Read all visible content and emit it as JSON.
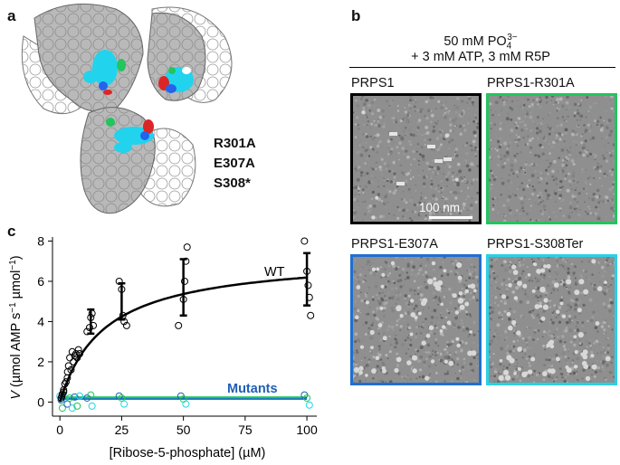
{
  "panels": {
    "a": {
      "letter": "a",
      "mutations": [
        {
          "label": "R301A",
          "color": "#1aa84a"
        },
        {
          "label": "E307A",
          "color": "#1f5fb5"
        },
        {
          "label": "S308*",
          "color": "#18a8b8"
        }
      ],
      "colors": {
        "surface_gray": "#b9b9b9",
        "surface_white": "#ffffff",
        "cyan": "#22d3ee",
        "green": "#22c55e",
        "blue": "#2563eb",
        "red": "#dc2626"
      }
    },
    "b": {
      "letter": "b",
      "condition_line1": "50 mM PO",
      "condition_sub": "4",
      "condition_sup": "3−",
      "condition_line2": "+ 3 mM ATP, 3 mM R5P",
      "images": [
        {
          "label": "PRPS1",
          "border": "#000000"
        },
        {
          "label": "PRPS1-R301A",
          "border": "#22c55e"
        },
        {
          "label": "PRPS1-E307A",
          "border": "#1f6fd1"
        },
        {
          "label": "PRPS1-S308Ter",
          "border": "#2bd0e6"
        }
      ],
      "scale_bar": "100 nm"
    },
    "c": {
      "letter": "c",
      "chart_data": {
        "type": "scatter",
        "xlabel": "[Ribose-5-phosphate] (µM)",
        "ylabel_main": "V (µmol AMP s",
        "ylabel_sup1": "−1",
        "ylabel_mid": " µmol",
        "ylabel_sup2": "−1",
        "ylabel_end": ")",
        "xlim": [
          -3,
          104
        ],
        "ylim": [
          -0.7,
          8.2
        ],
        "xticks": [
          0,
          25,
          50,
          75,
          100
        ],
        "yticks": [
          0,
          2,
          4,
          6,
          8
        ],
        "series": [
          {
            "name": "WT",
            "color": "#000000",
            "fit": {
              "vmax": 7.3,
              "km": 18
            },
            "means": [
              {
                "x": 12.5,
                "y": 4.0,
                "err": 0.6
              },
              {
                "x": 25,
                "y": 5.0,
                "err": 0.9
              },
              {
                "x": 50,
                "y": 5.7,
                "err": 1.4
              },
              {
                "x": 100,
                "y": 6.1,
                "err": 1.3
              }
            ],
            "points": [
              [
                0.5,
                0.2
              ],
              [
                0.8,
                0.3
              ],
              [
                1,
                0.4
              ],
              [
                1.5,
                0.5
              ],
              [
                1.5,
                0.6
              ],
              [
                2,
                0.9
              ],
              [
                2.5,
                1.0
              ],
              [
                3,
                1.2
              ],
              [
                3.1,
                1.5
              ],
              [
                3.5,
                1.8
              ],
              [
                4,
                2.2
              ],
              [
                4.5,
                1.6
              ],
              [
                5,
                2.5
              ],
              [
                5.5,
                2.0
              ],
              [
                6,
                2.3
              ],
              [
                6.5,
                2.4
              ],
              [
                7,
                2.2
              ],
              [
                7.5,
                2.6
              ],
              [
                8,
                2.4
              ],
              [
                11,
                3.5
              ],
              [
                12,
                3.7
              ],
              [
                12.5,
                4.2
              ],
              [
                13,
                4.4
              ],
              [
                13.5,
                3.8
              ],
              [
                24,
                6.0
              ],
              [
                25,
                5.6
              ],
              [
                25.5,
                4.3
              ],
              [
                26,
                4.0
              ],
              [
                27,
                3.8
              ],
              [
                48,
                3.8
              ],
              [
                50,
                5.1
              ],
              [
                50.5,
                6.0
              ],
              [
                51,
                7.0
              ],
              [
                51.5,
                7.7
              ],
              [
                99,
                8.0
              ],
              [
                100,
                6.5
              ],
              [
                100.5,
                5.8
              ],
              [
                101,
                5.2
              ],
              [
                101.5,
                4.3
              ]
            ]
          },
          {
            "name": "Mutants",
            "color": "#1f5fb5",
            "points": [
              [
                0,
                0.3
              ],
              [
                0.5,
                0.1
              ],
              [
                1,
                -0.3
              ],
              [
                2,
                0.2
              ],
              [
                3,
                -0.1
              ],
              [
                4,
                0.2
              ],
              [
                5,
                -0.3
              ],
              [
                6,
                0.25
              ],
              [
                7,
                -0.2
              ],
              [
                8,
                0.3
              ],
              [
                11,
                0.2
              ],
              [
                12.5,
                0.35
              ],
              [
                13,
                -0.2
              ],
              [
                24,
                0.3
              ],
              [
                25,
                0.2
              ],
              [
                26,
                -0.1
              ],
              [
                49,
                0.3
              ],
              [
                50,
                0.15
              ],
              [
                51,
                -0.1
              ],
              [
                99,
                0.35
              ],
              [
                100,
                0.2
              ],
              [
                101,
                -0.15
              ]
            ]
          }
        ],
        "labels": {
          "wt": "WT",
          "mutants": "Mutants"
        }
      }
    }
  }
}
